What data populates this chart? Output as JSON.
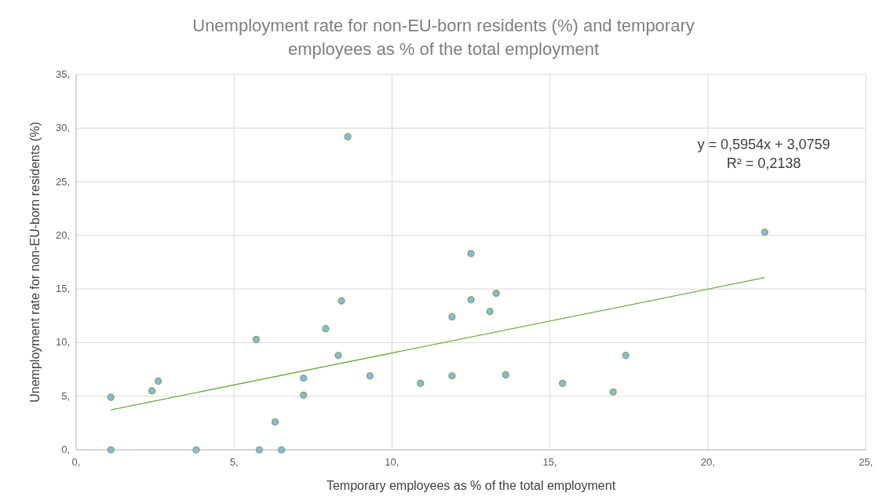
{
  "chart_data": {
    "type": "scatter",
    "title": "Unemployment rate for non-EU-born residents (%) and temporary employees as % of the total employment",
    "xlabel": "Temporary employees as % of the total employment",
    "ylabel": "Unemployment rate for non-EU-born residents (%)",
    "xlim": [
      0,
      25
    ],
    "ylim": [
      0,
      35
    ],
    "xticks": [
      {
        "value": 0,
        "label": "0,"
      },
      {
        "value": 5,
        "label": "5,"
      },
      {
        "value": 10,
        "label": "10,"
      },
      {
        "value": 15,
        "label": "15,"
      },
      {
        "value": 20,
        "label": "20,"
      },
      {
        "value": 25,
        "label": "25,"
      }
    ],
    "yticks": [
      {
        "value": 0,
        "label": "0,"
      },
      {
        "value": 5,
        "label": "5,"
      },
      {
        "value": 10,
        "label": "10,"
      },
      {
        "value": 15,
        "label": "15,"
      },
      {
        "value": 20,
        "label": "20,"
      },
      {
        "value": 25,
        "label": "25,"
      },
      {
        "value": 30,
        "label": "30,"
      },
      {
        "value": 35,
        "label": "35,"
      }
    ],
    "grid": true,
    "series": [
      {
        "color": "#8eb4e3",
        "marker": "circle",
        "x": [
          1.1,
          1.1,
          2.4,
          2.6,
          3.8,
          5.7,
          5.8,
          6.3,
          6.5,
          7.2,
          7.2,
          7.9,
          8.3,
          8.4,
          8.6,
          9.3,
          10.9,
          11.9,
          11.9,
          12.5,
          12.5,
          13.1,
          13.3,
          13.6,
          15.4,
          17.0,
          17.4,
          21.8
        ],
        "values": [
          4.9,
          0,
          5.5,
          6.4,
          0,
          10.3,
          0,
          2.6,
          0,
          6.7,
          5.1,
          11.3,
          8.8,
          13.9,
          29.2,
          6.9,
          6.2,
          12.4,
          6.9,
          18.3,
          14.0,
          12.9,
          14.6,
          7.0,
          6.2,
          5.4,
          8.8,
          20.3
        ]
      },
      {
        "type": "line",
        "color": "#70ad47",
        "x": [
          1.1,
          21.8
        ],
        "values": [
          3.73,
          16.06
        ]
      }
    ],
    "annotations": [
      "y = 0,5954x + 3,0759",
      "R² = 0,2138"
    ]
  }
}
